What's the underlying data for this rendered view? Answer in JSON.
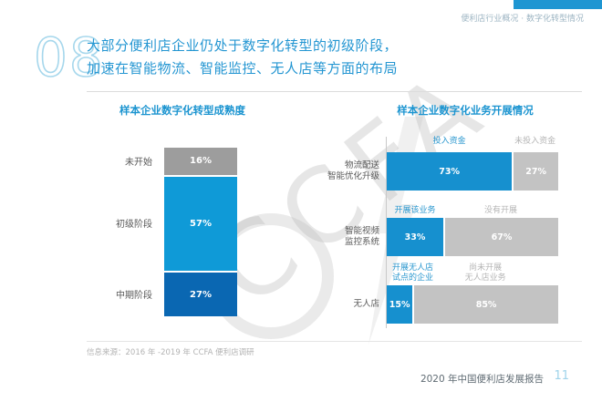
{
  "meta": {
    "breadcrumb": "便利店行业概况 · 数字化转型情况",
    "slide_number": "08",
    "title_line1": "大部分便利店企业仍处于数字化转型的初级阶段，",
    "title_line2": "加速在智能物流、智能监控、无人店等方面的布局",
    "watermark": "CCFA",
    "colors": {
      "accent_blue": "#1e96d2",
      "light_blue_bar": "#0f9ad7",
      "dark_blue_bar": "#0a67b2",
      "gray_bar_left": "#9d9d9d",
      "gray_bar_right": "#c3c3c3"
    }
  },
  "chart_data": [
    {
      "type": "bar",
      "variant": "stacked-vertical-column",
      "title": "样本企业数字化转型成熟度",
      "categories": [
        "未开始",
        "初级阶段",
        "中期阶段"
      ],
      "values": [
        16,
        57,
        27
      ],
      "value_labels": [
        "16%",
        "57%",
        "27%"
      ],
      "colors": [
        "#9d9d9d",
        "#0f9ad7",
        "#0a67b2"
      ],
      "ylim": [
        0,
        100
      ],
      "unit": "%",
      "legend": "none",
      "grid": false
    },
    {
      "type": "bar",
      "variant": "horizontal-100pct-stacked",
      "title": "样本企业数字化业务开展情况",
      "positive_color": "#1690cf",
      "negative_color": "#c3c3c3",
      "xlim": [
        0,
        100
      ],
      "unit": "%",
      "grid": false,
      "rows": [
        {
          "label": "物流配送\n智能优化升级",
          "positive_header": "投入资金",
          "negative_header": "未投入资金",
          "positive": 73,
          "negative": 27,
          "positive_label": "73%",
          "negative_label": "27%"
        },
        {
          "label": "智能视频\n监控系统",
          "positive_header": "开展该业务",
          "negative_header": "没有开展",
          "positive": 33,
          "negative": 67,
          "positive_label": "33%",
          "negative_label": "67%"
        },
        {
          "label": "无人店",
          "positive_header": "开展无人店\n试点的企业",
          "negative_header": "尚未开展\n无人店业务",
          "positive": 15,
          "negative": 85,
          "positive_label": "15%",
          "negative_label": "85%"
        }
      ]
    }
  ],
  "footer": {
    "source": "信息来源：2016 年 -2019 年 CCFA 便利店调研",
    "report_title": "2020 年中国便利店发展报告",
    "page_number": "11"
  }
}
